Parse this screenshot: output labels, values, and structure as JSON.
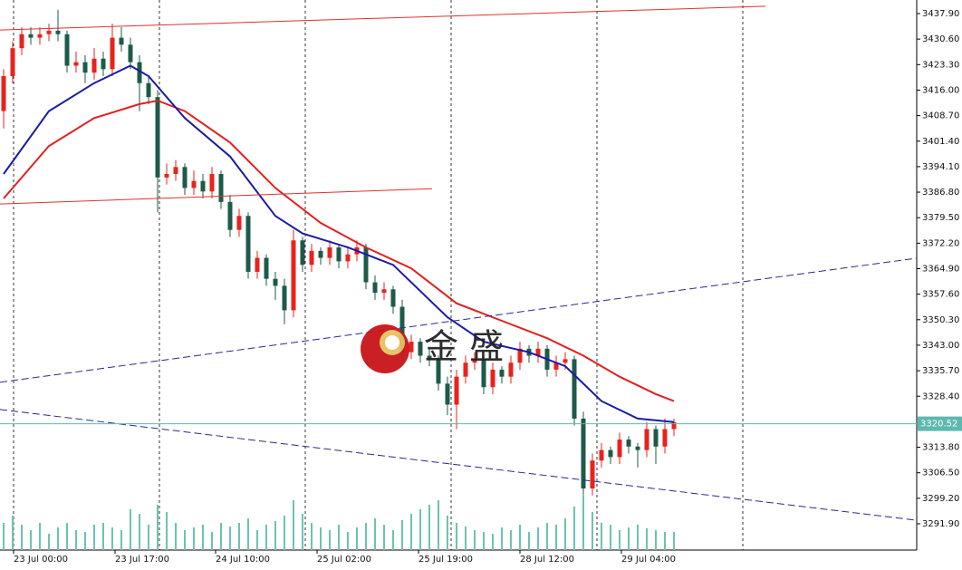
{
  "chart_data": {
    "type": "candlestick",
    "watermark": "金 盛",
    "xlim": [
      -0.4,
      100.8
    ],
    "ylim": [
      3284.38,
      3441.79
    ],
    "yticks": [
      {
        "value": 3437.9,
        "label": "3437.90"
      },
      {
        "value": 3430.6,
        "label": "3430.60"
      },
      {
        "value": 3423.3,
        "label": "3423.30"
      },
      {
        "value": 3416.0,
        "label": "3416.00"
      },
      {
        "value": 3408.7,
        "label": "3408.70"
      },
      {
        "value": 3401.4,
        "label": "3401.40"
      },
      {
        "value": 3394.1,
        "label": "3394.10"
      },
      {
        "value": 3386.8,
        "label": "3386.80"
      },
      {
        "value": 3379.5,
        "label": "3379.50"
      },
      {
        "value": 3372.2,
        "label": "3372.20"
      },
      {
        "value": 3364.9,
        "label": "3364.90"
      },
      {
        "value": 3357.6,
        "label": "3357.60"
      },
      {
        "value": 3350.3,
        "label": "3350.30"
      },
      {
        "value": 3343.0,
        "label": "3343.00"
      },
      {
        "value": 3335.7,
        "label": "3335.70"
      },
      {
        "value": 3328.4,
        "label": "3328.40"
      },
      {
        "value": 3313.8,
        "label": "3313.80"
      },
      {
        "value": 3306.5,
        "label": "3306.50"
      },
      {
        "value": 3299.2,
        "label": "3299.20"
      },
      {
        "value": 3291.9,
        "label": "3291.90"
      }
    ],
    "xticks": [
      {
        "value": 1.1,
        "label": "23 Jul 00:00"
      },
      {
        "value": 12.3,
        "label": "23 Jul 17:00"
      },
      {
        "value": 23.4,
        "label": "24 Jul 10:00"
      },
      {
        "value": 34.6,
        "label": "25 Jul 02:00"
      },
      {
        "value": 45.8,
        "label": "25 Jul 19:00"
      },
      {
        "value": 57.0,
        "label": "28 Jul 12:00"
      },
      {
        "value": 68.2,
        "label": "29 Jul 04:00"
      }
    ],
    "up_color": "#e8221c",
    "down_color": "#1d5a4a",
    "volume_color": "#6cc2b4",
    "open": [
      3410,
      3420,
      3428,
      3432,
      3431,
      3432,
      3433,
      3432,
      3423,
      3424,
      3421,
      3425,
      3422,
      3431,
      3429,
      3424,
      3418,
      3414,
      3391,
      3392,
      3394,
      3388,
      3390,
      3387,
      3392,
      3384,
      3376,
      3380,
      3364,
      3368,
      3362,
      3360,
      3353,
      3373,
      3366,
      3370,
      3368,
      3371,
      3367,
      3369,
      3371,
      3361,
      3358,
      3359,
      3354,
      3341,
      3344,
      3340,
      3339,
      3332,
      3326,
      3334,
      3338,
      3339,
      3331,
      3336,
      3334,
      3338,
      3342,
      3340,
      3342,
      3336,
      3338,
      3339,
      3322,
      3302,
      3310,
      3313,
      3311,
      3316,
      3314,
      3313,
      3319,
      3314,
      3319
    ],
    "high": [
      3422,
      3430,
      3434,
      3434,
      3434,
      3435,
      3439,
      3433,
      3427,
      3426,
      3428,
      3427,
      3435,
      3434,
      3431,
      3426,
      3420,
      3416,
      3395,
      3396,
      3395,
      3393,
      3392,
      3394,
      3393,
      3386,
      3382,
      3381,
      3370,
      3369,
      3364,
      3362,
      3376,
      3374,
      3372,
      3371,
      3373,
      3372,
      3371,
      3373,
      3372,
      3363,
      3361,
      3360,
      3356,
      3346,
      3345,
      3342,
      3340,
      3334,
      3336,
      3340,
      3341,
      3340,
      3338,
      3337,
      3340,
      3344,
      3343,
      3344,
      3343,
      3340,
      3341,
      3340,
      3324,
      3312,
      3315,
      3314,
      3318,
      3317,
      3315,
      3321,
      3320,
      3322,
      3322
    ],
    "low": [
      3405,
      3418,
      3426,
      3429,
      3429,
      3430,
      3430,
      3421,
      3421,
      3418,
      3419,
      3420,
      3420,
      3427,
      3422,
      3410,
      3412,
      3381,
      3389,
      3390,
      3386,
      3386,
      3385,
      3385,
      3382,
      3374,
      3374,
      3362,
      3362,
      3360,
      3356,
      3349,
      3351,
      3364,
      3364,
      3366,
      3366,
      3365,
      3365,
      3367,
      3359,
      3356,
      3356,
      3352,
      3339,
      3339,
      3338,
      3337,
      3330,
      3323,
      3319,
      3332,
      3336,
      3329,
      3329,
      3332,
      3332,
      3336,
      3338,
      3338,
      3334,
      3334,
      3336,
      3320,
      3300,
      3300,
      3308,
      3309,
      3309,
      3312,
      3308,
      3311,
      3309,
      3312,
      3317
    ],
    "close": [
      3420,
      3428,
      3432,
      3431,
      3432,
      3433,
      3432,
      3423,
      3424,
      3421,
      3425,
      3422,
      3431,
      3429,
      3424,
      3418,
      3414,
      3391,
      3392,
      3394,
      3388,
      3390,
      3387,
      3392,
      3384,
      3376,
      3380,
      3364,
      3368,
      3362,
      3360,
      3353,
      3373,
      3366,
      3370,
      3368,
      3371,
      3367,
      3369,
      3371,
      3361,
      3358,
      3359,
      3354,
      3341,
      3344,
      3340,
      3339,
      3332,
      3326,
      3334,
      3338,
      3339,
      3331,
      3336,
      3334,
      3338,
      3342,
      3340,
      3342,
      3336,
      3338,
      3339,
      3322,
      3302,
      3310,
      3313,
      3311,
      3316,
      3314,
      3313,
      3319,
      3314,
      3319,
      3321
    ],
    "volume": [
      30,
      38,
      28,
      22,
      30,
      18,
      25,
      30,
      22,
      20,
      28,
      30,
      25,
      22,
      45,
      40,
      28,
      50,
      42,
      30,
      22,
      25,
      28,
      20,
      30,
      26,
      30,
      35,
      22,
      28,
      32,
      38,
      55,
      40,
      30,
      25,
      22,
      28,
      20,
      25,
      30,
      35,
      28,
      22,
      33,
      40,
      45,
      50,
      55,
      38,
      30,
      26,
      22,
      20,
      18,
      25,
      22,
      28,
      20,
      25,
      30,
      28,
      35,
      48,
      60,
      42,
      30,
      28,
      22,
      25,
      28,
      24,
      22,
      20,
      20
    ],
    "moving_averages": [
      {
        "color": "#e02020",
        "x": [
          0,
          5,
          10,
          15,
          17,
          20,
          25,
          30,
          35,
          40,
          45,
          50,
          55,
          60,
          64,
          68,
          72,
          74
        ],
        "values": [
          3385,
          3400,
          3408,
          3412,
          3413,
          3410,
          3401,
          3388,
          3378,
          3371,
          3365,
          3355,
          3350,
          3345,
          3340,
          3334,
          3329,
          3327
        ]
      },
      {
        "color": "#1a1aa6",
        "x": [
          0,
          5,
          10,
          14,
          16,
          20,
          25,
          30,
          33,
          38,
          43,
          49,
          53,
          58,
          62,
          66,
          70,
          74
        ],
        "values": [
          3392,
          3410,
          3418,
          3423,
          3420,
          3408,
          3397,
          3380,
          3375,
          3371,
          3366,
          3351,
          3344,
          3341,
          3337,
          3327,
          3322,
          3321
        ]
      }
    ],
    "trendlines": [
      {
        "color": "#e03030",
        "dashed": false,
        "x": [
          -0.4,
          84.1
        ],
        "y": [
          3433.2,
          3440.0
        ]
      },
      {
        "color": "#e03030",
        "dashed": false,
        "x": [
          -0.4,
          47.3
        ],
        "y": [
          3383.4,
          3387.8
        ]
      },
      {
        "color": "#2a2a8a",
        "dashed": true,
        "x": [
          -0.4,
          100.8
        ],
        "y": [
          3332.4,
          3367.9
        ]
      },
      {
        "color": "#2a2a8a",
        "dashed": true,
        "x": [
          -0.4,
          100.8
        ],
        "y": [
          3324.6,
          3292.9
        ]
      }
    ],
    "current_price": {
      "value": 3320.52,
      "label": "3320.52",
      "color": "#5fb8b0"
    }
  }
}
